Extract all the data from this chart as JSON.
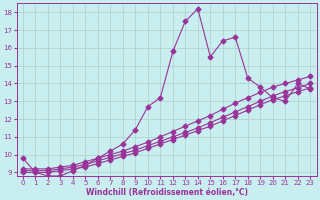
{
  "xlabel": "Windchill (Refroidissement éolien,°C)",
  "background_color": "#c8eef0",
  "grid_color": "#b0cccc",
  "line_color": "#993399",
  "xlim": [
    -0.5,
    23.5
  ],
  "ylim": [
    8.8,
    18.5
  ],
  "xticks": [
    0,
    1,
    2,
    3,
    4,
    5,
    6,
    7,
    8,
    9,
    10,
    11,
    12,
    13,
    14,
    15,
    16,
    17,
    18,
    19,
    20,
    21,
    22,
    23
  ],
  "yticks": [
    9,
    10,
    11,
    12,
    13,
    14,
    15,
    16,
    17,
    18
  ],
  "main_line": [
    9.8,
    9.0,
    8.8,
    8.8,
    9.1,
    9.4,
    9.8,
    10.2,
    10.6,
    11.4,
    12.7,
    13.2,
    15.8,
    17.5,
    18.2,
    15.5,
    16.4,
    16.6,
    14.3,
    13.8,
    13.2,
    13.0,
    14.0,
    13.7
  ],
  "straight_lines": [
    [
      9.0,
      9.0,
      9.0,
      9.1,
      9.2,
      9.3,
      9.5,
      9.7,
      9.9,
      10.1,
      10.35,
      10.6,
      10.85,
      11.1,
      11.35,
      11.6,
      11.9,
      12.2,
      12.5,
      12.8,
      13.1,
      13.3,
      13.55,
      13.75
    ],
    [
      9.1,
      9.1,
      9.1,
      9.2,
      9.3,
      9.45,
      9.65,
      9.85,
      10.05,
      10.25,
      10.5,
      10.75,
      11.0,
      11.25,
      11.5,
      11.8,
      12.1,
      12.4,
      12.7,
      13.0,
      13.3,
      13.55,
      13.75,
      14.0
    ],
    [
      9.2,
      9.2,
      9.2,
      9.3,
      9.4,
      9.6,
      9.8,
      10.0,
      10.2,
      10.45,
      10.7,
      11.0,
      11.3,
      11.6,
      11.9,
      12.2,
      12.55,
      12.9,
      13.2,
      13.5,
      13.8,
      14.0,
      14.2,
      14.4
    ]
  ],
  "marker": "D",
  "marker_size": 2.5,
  "linewidth": 0.8,
  "tick_fontsize": 5,
  "xlabel_fontsize": 5.5
}
